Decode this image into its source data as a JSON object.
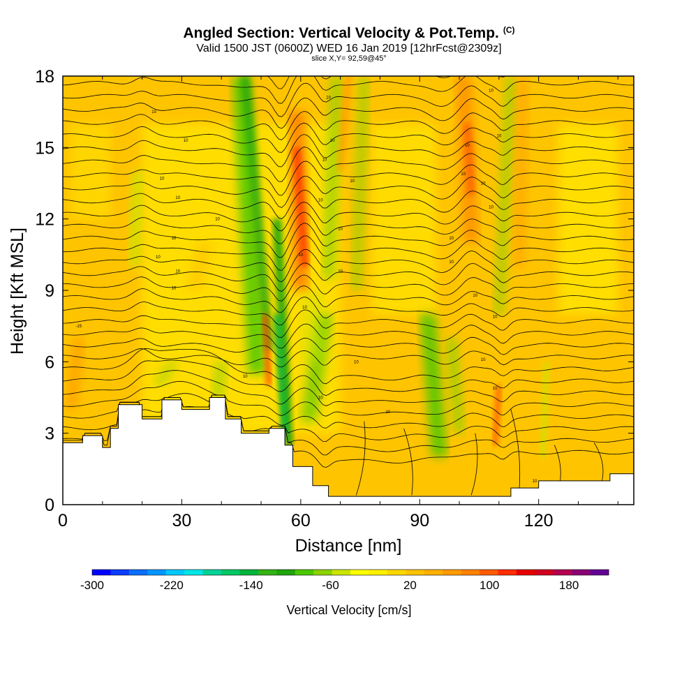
{
  "title": {
    "main": "Angled Section: Vertical Velocity & Pot.Temp.",
    "mark": "(C)",
    "valid": "Valid 1500 JST (0600Z) WED 16 Jan 2019 [12hrFcst@2309z]",
    "slice": "slice X,Y= 92,59@45°"
  },
  "chart_data": {
    "type": "heatmap",
    "xlabel": "Distance [nm]",
    "ylabel": "Height [Kft MSL]",
    "xlim": [
      0,
      144
    ],
    "ylim": [
      0,
      18
    ],
    "xticks": [
      0,
      30,
      60,
      90,
      120
    ],
    "yticks": [
      0,
      3,
      6,
      9,
      12,
      15,
      18
    ],
    "grid": false,
    "colorbar": {
      "title": "Vertical Velocity [cm/s]",
      "min": -300,
      "max": 220,
      "step": 20,
      "tick_labels": [
        "-300",
        "-220",
        "-140",
        "-60",
        "20",
        "100",
        "180"
      ],
      "tick_values": [
        -300,
        -220,
        -140,
        -60,
        20,
        100,
        180
      ],
      "colors": [
        "#0000ff",
        "#0a3cff",
        "#0a6eff",
        "#0096ff",
        "#00c8ff",
        "#00e6e6",
        "#00d296",
        "#00c864",
        "#00b43c",
        "#32b414",
        "#1ea50a",
        "#4bc800",
        "#8cd200",
        "#c8e600",
        "#ffff00",
        "#fff000",
        "#ffd700",
        "#ffc300",
        "#ffaf00",
        "#ff9b00",
        "#ff8200",
        "#ff5a00",
        "#ff2d00",
        "#e60000",
        "#d2001e",
        "#b40050",
        "#8c0073",
        "#640096"
      ]
    },
    "contour_labels": [
      {
        "x": 4,
        "y": 7.5,
        "label": "-15"
      },
      {
        "x": 23,
        "y": 16.5,
        "label": "10"
      },
      {
        "x": 31,
        "y": 15.3,
        "label": "10"
      },
      {
        "x": 25,
        "y": 13.7,
        "label": "10"
      },
      {
        "x": 29,
        "y": 12.9,
        "label": "10"
      },
      {
        "x": 39,
        "y": 12.0,
        "label": "10"
      },
      {
        "x": 28,
        "y": 11.2,
        "label": "10"
      },
      {
        "x": 24,
        "y": 10.4,
        "label": "10"
      },
      {
        "x": 29,
        "y": 9.8,
        "label": "10"
      },
      {
        "x": 28,
        "y": 9.1,
        "label": "10"
      },
      {
        "x": 46,
        "y": 5.4,
        "label": "10"
      },
      {
        "x": 67,
        "y": 17.1,
        "label": "10"
      },
      {
        "x": 68,
        "y": 15.3,
        "label": "10"
      },
      {
        "x": 66,
        "y": 14.5,
        "label": "10"
      },
      {
        "x": 73,
        "y": 13.6,
        "label": "10"
      },
      {
        "x": 65,
        "y": 12.8,
        "label": "10"
      },
      {
        "x": 70,
        "y": 11.6,
        "label": "10"
      },
      {
        "x": 60,
        "y": 10.5,
        "label": "10"
      },
      {
        "x": 70,
        "y": 9.8,
        "label": "10"
      },
      {
        "x": 61,
        "y": 8.3,
        "label": "10"
      },
      {
        "x": 74,
        "y": 6.0,
        "label": "10"
      },
      {
        "x": 65,
        "y": 4.5,
        "label": "10"
      },
      {
        "x": 82,
        "y": 3.9,
        "label": "10"
      },
      {
        "x": 108,
        "y": 17.4,
        "label": "10"
      },
      {
        "x": 110,
        "y": 15.5,
        "label": "10"
      },
      {
        "x": 102,
        "y": 15.1,
        "label": "10"
      },
      {
        "x": 101,
        "y": 13.9,
        "label": "10"
      },
      {
        "x": 106,
        "y": 13.5,
        "label": "10"
      },
      {
        "x": 108,
        "y": 12.5,
        "label": "10"
      },
      {
        "x": 98,
        "y": 11.2,
        "label": "10"
      },
      {
        "x": 98,
        "y": 10.2,
        "label": "10"
      },
      {
        "x": 104,
        "y": 8.8,
        "label": "10"
      },
      {
        "x": 109,
        "y": 7.9,
        "label": "10"
      },
      {
        "x": 106,
        "y": 6.1,
        "label": "10"
      },
      {
        "x": 109,
        "y": 4.9,
        "label": "10"
      },
      {
        "x": 119,
        "y": 1.0,
        "label": "10"
      }
    ]
  }
}
